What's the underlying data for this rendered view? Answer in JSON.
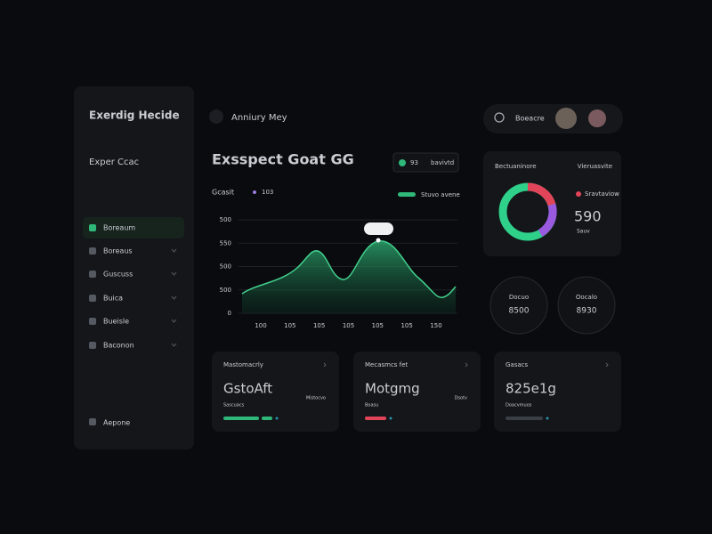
{
  "sidebar": {
    "brand": "Exerdig Hecide",
    "section": "Exper Ccac",
    "menu": [
      "Boreaum",
      "Boreaus",
      "Guscuss",
      "Buica",
      "Bueisle",
      "Baconon"
    ],
    "footer": "Aepone"
  },
  "header": {
    "breadcrumb": "Anniury Mey",
    "search": "Boeacre"
  },
  "chart_panel": {
    "title": "Exsspect Goat GG",
    "subtitle": "Gcasit",
    "tag": "103",
    "legend": [
      "93",
      "bavivtd"
    ],
    "legend_series": "Stuvo avene",
    "y_labels": [
      "500",
      "550",
      "500",
      "500",
      "0"
    ],
    "x_labels": [
      "100",
      "105",
      "105",
      "105",
      "105",
      "105",
      "150"
    ]
  },
  "donut_card": {
    "title": "Bectuaninore",
    "subtitle": "Vieruasvite",
    "legend": "Sravtaviow",
    "value": "590",
    "note": "Sauv"
  },
  "circles": [
    {
      "label": "Docuo",
      "value": "8500"
    },
    {
      "label": "Oocalo",
      "value": "8930"
    }
  ],
  "cards": [
    {
      "label": "Mastomacrly",
      "value": "GstoAft",
      "note": "Mistocvo",
      "caption": "Sascuacs"
    },
    {
      "label": "Mecasmcs fet",
      "value": "Motgmg",
      "note": "Dsotv",
      "caption": "Boasu"
    },
    {
      "label": "Gasacs",
      "value": "825e1g",
      "note": "",
      "caption": "Doacvmuos"
    }
  ]
}
